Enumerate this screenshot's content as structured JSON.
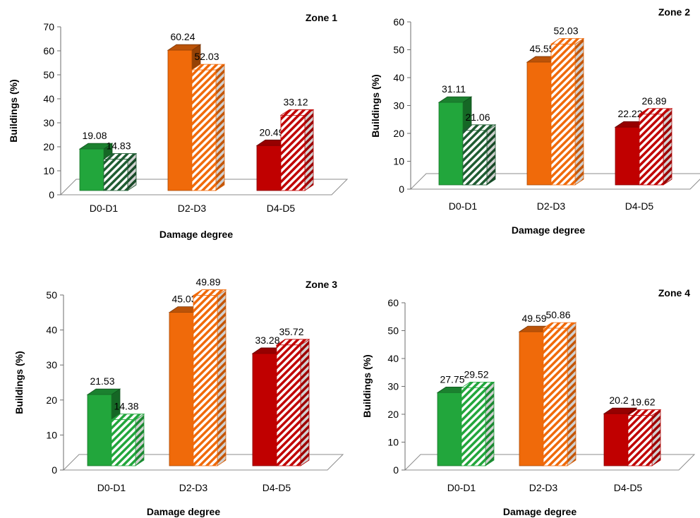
{
  "colors": {
    "D0-D1": "#22a63c",
    "D2-D3": "#f06a0a",
    "D4-D5": "#c00000",
    "D0-D1-hatch-zone1": "#1f5c32",
    "D0-D1-hatch-zone2": "#1f5c32",
    "D0-D1-hatch-zone3": "#22a63c",
    "D0-D1-hatch-zone4": "#22a63c"
  },
  "chart_data": [
    {
      "type": "bar",
      "title": "Zone 1",
      "xlabel": "Damage degree",
      "ylabel": "Buildings (%)",
      "ylim": [
        0,
        70
      ],
      "yticks": [
        "0",
        "10",
        "20",
        "30",
        "40",
        "50",
        "60",
        "70"
      ],
      "categories": [
        "D0-D1",
        "D2-D3",
        "D4-D5"
      ],
      "series": [
        {
          "style": "solid",
          "values": [
            19.08,
            60.24,
            20.49
          ],
          "labels": [
            "19.08",
            "60.24",
            "20.49"
          ]
        },
        {
          "style": "hatched",
          "values": [
            14.83,
            52.03,
            33.12
          ],
          "labels": [
            "14.83",
            "52.03",
            "33.12"
          ]
        }
      ]
    },
    {
      "type": "bar",
      "title": "Zone 2",
      "xlabel": "Damage degree",
      "ylabel": "Buildings (%)",
      "ylim": [
        0,
        60
      ],
      "yticks": [
        "0",
        "10",
        "20",
        "30",
        "40",
        "50",
        "60"
      ],
      "categories": [
        "D0-D1",
        "D2-D3",
        "D4-D5"
      ],
      "series": [
        {
          "style": "solid",
          "values": [
            31.11,
            45.55,
            22.22
          ],
          "labels": [
            "31.11",
            "45.55",
            "22.22"
          ]
        },
        {
          "style": "hatched",
          "values": [
            21.06,
            52.03,
            26.89
          ],
          "labels": [
            "21.06",
            "52.03",
            "26.89"
          ]
        }
      ]
    },
    {
      "type": "bar",
      "title": "Zone 3",
      "xlabel": "Damage degree",
      "ylabel": "Buildings (%)",
      "ylim": [
        0,
        50
      ],
      "yticks": [
        "0",
        "10",
        "20",
        "30",
        "40",
        "50"
      ],
      "categories": [
        "D0-D1",
        "D2-D3",
        "D4-D5"
      ],
      "series": [
        {
          "style": "solid",
          "values": [
            21.53,
            45.03,
            33.28
          ],
          "labels": [
            "21.53",
            "45.03",
            "33.28"
          ]
        },
        {
          "style": "hatched",
          "values": [
            14.38,
            49.89,
            35.72
          ],
          "labels": [
            "14.38",
            "49.89",
            "35.72"
          ]
        }
      ]
    },
    {
      "type": "bar",
      "title": "Zone 4",
      "xlabel": "Damage degree",
      "ylabel": "Buildings (%)",
      "ylim": [
        0,
        60
      ],
      "yticks": [
        "0",
        "10",
        "20",
        "30",
        "40",
        "50",
        "60"
      ],
      "categories": [
        "D0-D1",
        "D2-D3",
        "D4-D5"
      ],
      "series": [
        {
          "style": "solid",
          "values": [
            27.75,
            49.59,
            20.2
          ],
          "labels": [
            "27.75",
            "49.59",
            "20.2"
          ]
        },
        {
          "style": "hatched",
          "values": [
            29.52,
            50.86,
            19.62
          ],
          "labels": [
            "29.52",
            "50.86",
            "19.62"
          ]
        }
      ]
    }
  ]
}
